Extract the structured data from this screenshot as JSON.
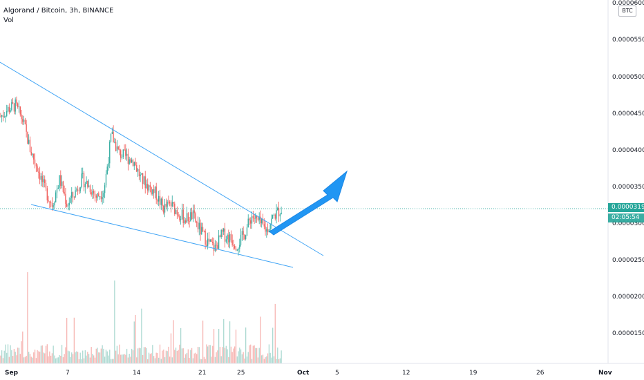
{
  "legend": {
    "symbol_title": "Algorand / Bitcoin, 3h, BINANCE",
    "volume_label": "Vol"
  },
  "price_axis": {
    "unit": "BTC",
    "ticks": [
      "0.00006000",
      "0.00005500",
      "0.00005000",
      "0.00004500",
      "0.00004000",
      "0.00003500",
      "0.00003000",
      "0.00002500",
      "0.00002000",
      "0.00001500"
    ],
    "current_price": "0.00003190",
    "countdown": "02:05:54"
  },
  "time_axis": {
    "ticks": [
      {
        "label": "Sep",
        "bold": true
      },
      {
        "label": "7",
        "bold": false
      },
      {
        "label": "14",
        "bold": false
      },
      {
        "label": "21",
        "bold": false
      },
      {
        "label": "25",
        "bold": false
      },
      {
        "label": "Oct",
        "bold": true
      },
      {
        "label": "5",
        "bold": false
      },
      {
        "label": "12",
        "bold": false
      },
      {
        "label": "19",
        "bold": false
      },
      {
        "label": "26",
        "bold": false
      },
      {
        "label": "Nov",
        "bold": true
      }
    ]
  },
  "colors": {
    "up": "#26a69a",
    "down": "#ef5350",
    "up_vol": "#a7d7cf",
    "down_vol": "#f6b1ae",
    "trendline": "#42a5f5",
    "arrow": "#2196f3",
    "price_line": "#26a69a"
  },
  "chart_data": {
    "type": "candlestick",
    "interval": "3h",
    "path": [
      4.45e-05,
      4.55e-05,
      4.6e-05,
      4.4e-05,
      4e-05,
      3.75e-05,
      3.45e-05,
      3.25e-05,
      3.6e-05,
      3.25e-05,
      3.4e-05,
      3.6e-05,
      3.5e-05,
      3.35e-05,
      3.45e-05,
      4.2e-05,
      3.95e-05,
      3.9e-05,
      3.85e-05,
      3.6e-05,
      3.5e-05,
      3.4e-05,
      3.2e-05,
      3.25e-05,
      3.15e-05,
      3.05e-05,
      3.1e-05,
      2.9e-05,
      2.75e-05,
      2.65e-05,
      2.85e-05,
      2.8e-05,
      2.7e-05,
      2.85e-05,
      3.1e-05,
      3e-05,
      2.9e-05,
      3.1e-05,
      3.19e-05
    ],
    "price_min": 1.05e-05,
    "price_max": 6.05e-05,
    "candle_count": 230,
    "annotations": [
      {
        "type": "trendline",
        "label": "upper",
        "from": [
          "Aug 30",
          5.2e-05
        ],
        "to": [
          "Oct 5",
          2.55e-05
        ]
      },
      {
        "type": "trendline",
        "label": "lower",
        "from": [
          "Sep 1",
          3.15e-05
        ],
        "to": [
          "Sep 30",
          2.4e-05
        ]
      },
      {
        "type": "arrow",
        "direction": "up-right",
        "from": [
          "Sep 28",
          2.9e-05
        ],
        "to": [
          "Oct 5",
          3.7e-05
        ]
      }
    ]
  }
}
